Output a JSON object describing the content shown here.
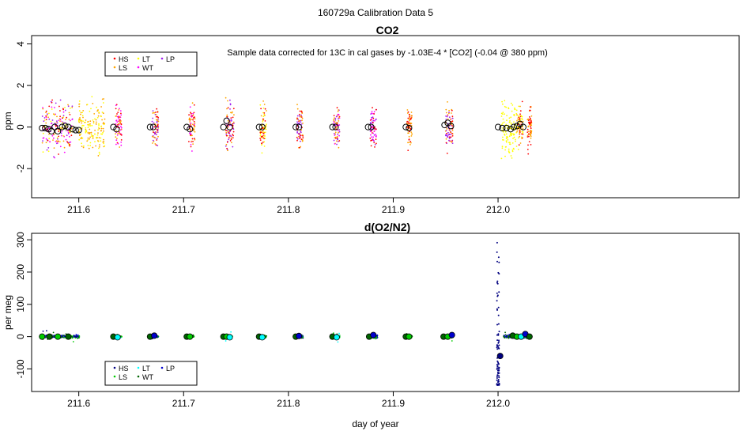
{
  "figure": {
    "title": "160729a   Calibration Data 5",
    "xlabel": "day of year",
    "x_ticks": [
      211.6,
      211.7,
      211.8,
      211.9,
      212.0
    ],
    "xlim": [
      211.555,
      212.23
    ]
  },
  "colors": {
    "HS": "#ff0000",
    "LS": "#ffa500",
    "LT": "#ffff00",
    "WT": "#ff00ff",
    "LP": "#a020f0",
    "o2_HS": "#000080",
    "o2_LS": "#00cc00",
    "o2_LT": "#00ffff",
    "o2_WT": "#006400",
    "o2_LP": "#0000cd"
  },
  "chart_data": [
    {
      "type": "scatter",
      "title": "CO2",
      "annotation": "Sample data corrected for 13C in cal gases by -1.03E-4 * [CO2] (-0.04 @ 380 ppm)",
      "ylabel": "ppm",
      "ylim": [
        -3.4,
        4.4
      ],
      "y_ticks": [
        -2,
        0,
        2,
        4
      ],
      "legend": {
        "position": "top-left",
        "entries": [
          "HS",
          "LS",
          "LT",
          "WT",
          "LP"
        ]
      },
      "clusters": [
        {
          "x": 211.565,
          "width": 0.03,
          "spread": 0.8,
          "series": [
            "HS",
            "LS",
            "LT",
            "WT",
            "LP"
          ]
        },
        {
          "x": 211.6,
          "width": 0.025,
          "spread": 0.9,
          "series": [
            "LT",
            "LS"
          ]
        },
        {
          "x": 211.635,
          "width": 0.006,
          "spread": 0.7,
          "series": [
            "HS",
            "LS",
            "WT"
          ]
        },
        {
          "x": 211.67,
          "width": 0.006,
          "spread": 0.7,
          "series": [
            "HS",
            "LS",
            "LP"
          ]
        },
        {
          "x": 211.705,
          "width": 0.006,
          "spread": 0.7,
          "series": [
            "LS",
            "HS",
            "WT"
          ]
        },
        {
          "x": 211.74,
          "width": 0.008,
          "spread": 0.8,
          "series": [
            "HS",
            "LS",
            "LP"
          ]
        },
        {
          "x": 211.773,
          "width": 0.006,
          "spread": 0.7,
          "series": [
            "HS",
            "LS",
            "LT"
          ]
        },
        {
          "x": 211.808,
          "width": 0.006,
          "spread": 0.7,
          "series": [
            "HS",
            "LS",
            "LP"
          ]
        },
        {
          "x": 211.843,
          "width": 0.006,
          "spread": 0.7,
          "series": [
            "LS",
            "HS",
            "WT",
            "LP"
          ]
        },
        {
          "x": 211.878,
          "width": 0.006,
          "spread": 0.7,
          "series": [
            "HS",
            "WT",
            "LP"
          ]
        },
        {
          "x": 211.913,
          "width": 0.005,
          "spread": 0.6,
          "series": [
            "LS",
            "HS"
          ]
        },
        {
          "x": 211.95,
          "width": 0.007,
          "spread": 0.7,
          "series": [
            "HS",
            "LS",
            "LP"
          ]
        },
        {
          "x": 212.003,
          "width": 0.015,
          "spread": 0.9,
          "series": [
            "LT"
          ]
        },
        {
          "x": 212.018,
          "width": 0.006,
          "spread": 0.7,
          "series": [
            "LT",
            "LS",
            "HS"
          ]
        },
        {
          "x": 212.028,
          "width": 0.004,
          "spread": 0.7,
          "series": [
            "HS",
            "LS"
          ]
        }
      ],
      "means": [
        {
          "x": 211.565,
          "y": -0.05
        },
        {
          "x": 211.568,
          "y": -0.05
        },
        {
          "x": 211.571,
          "y": -0.1
        },
        {
          "x": 211.574,
          "y": -0.2
        },
        {
          "x": 211.577,
          "y": 0.0
        },
        {
          "x": 211.58,
          "y": -0.2
        },
        {
          "x": 211.584,
          "y": 0.0
        },
        {
          "x": 211.587,
          "y": 0.05
        },
        {
          "x": 211.59,
          "y": 0.0
        },
        {
          "x": 211.594,
          "y": -0.1
        },
        {
          "x": 211.597,
          "y": -0.15
        },
        {
          "x": 211.6,
          "y": -0.15
        },
        {
          "x": 211.633,
          "y": 0.0
        },
        {
          "x": 211.636,
          "y": -0.1
        },
        {
          "x": 211.668,
          "y": 0.0
        },
        {
          "x": 211.671,
          "y": 0.0
        },
        {
          "x": 211.703,
          "y": 0.0
        },
        {
          "x": 211.706,
          "y": -0.1
        },
        {
          "x": 211.738,
          "y": 0.0
        },
        {
          "x": 211.741,
          "y": 0.3
        },
        {
          "x": 211.744,
          "y": 0.0
        },
        {
          "x": 211.772,
          "y": 0.0
        },
        {
          "x": 211.775,
          "y": 0.0
        },
        {
          "x": 211.807,
          "y": 0.0
        },
        {
          "x": 211.81,
          "y": 0.0
        },
        {
          "x": 211.842,
          "y": 0.0
        },
        {
          "x": 211.845,
          "y": 0.0
        },
        {
          "x": 211.876,
          "y": 0.0
        },
        {
          "x": 211.879,
          "y": 0.0
        },
        {
          "x": 211.912,
          "y": 0.0
        },
        {
          "x": 211.915,
          "y": -0.05
        },
        {
          "x": 211.949,
          "y": 0.1
        },
        {
          "x": 211.952,
          "y": 0.2
        },
        {
          "x": 211.955,
          "y": 0.05
        },
        {
          "x": 212.0,
          "y": 0.0
        },
        {
          "x": 212.004,
          "y": -0.05
        },
        {
          "x": 212.008,
          "y": -0.05
        },
        {
          "x": 212.012,
          "y": -0.1
        },
        {
          "x": 212.015,
          "y": 0.0
        },
        {
          "x": 212.018,
          "y": 0.05
        },
        {
          "x": 212.021,
          "y": 0.15
        },
        {
          "x": 212.024,
          "y": 0.0
        }
      ]
    },
    {
      "type": "scatter",
      "title": "d(O2/N2)",
      "ylabel": "per meg",
      "ylim": [
        -170,
        320
      ],
      "y_ticks": [
        -100,
        0,
        100,
        200,
        300
      ],
      "legend": {
        "position": "bottom-left",
        "entries": [
          "HS",
          "LS",
          "LT",
          "WT",
          "LP"
        ]
      },
      "clusters": [
        {
          "x": 211.565,
          "width": 0.036,
          "spread": 3,
          "series": [
            "HS",
            "LP",
            "LS",
            "WT"
          ]
        },
        {
          "x": 211.635,
          "width": 0.006,
          "spread": 2,
          "series": [
            "LS",
            "WT",
            "LT"
          ]
        },
        {
          "x": 211.67,
          "width": 0.006,
          "spread": 2,
          "series": [
            "LS",
            "WT",
            "LP"
          ]
        },
        {
          "x": 211.705,
          "width": 0.005,
          "spread": 2,
          "series": [
            "LS",
            "WT"
          ]
        },
        {
          "x": 211.74,
          "width": 0.007,
          "spread": 3,
          "series": [
            "LS",
            "WT",
            "LT"
          ]
        },
        {
          "x": 211.773,
          "width": 0.006,
          "spread": 3,
          "series": [
            "LS",
            "WT",
            "HS"
          ]
        },
        {
          "x": 211.808,
          "width": 0.006,
          "spread": 3,
          "series": [
            "LS",
            "WT",
            "LP",
            "HS"
          ]
        },
        {
          "x": 211.843,
          "width": 0.006,
          "spread": 3,
          "series": [
            "LS",
            "WT",
            "LT"
          ]
        },
        {
          "x": 211.878,
          "width": 0.007,
          "spread": 4,
          "series": [
            "LS",
            "WT",
            "LP"
          ]
        },
        {
          "x": 211.913,
          "width": 0.005,
          "spread": 3,
          "series": [
            "LS",
            "WT"
          ]
        },
        {
          "x": 211.95,
          "width": 0.007,
          "spread": 3,
          "series": [
            "LS",
            "WT",
            "LP"
          ]
        },
        {
          "x": 212.005,
          "width": 0.015,
          "spread": 3,
          "series": [
            "HS",
            "LP",
            "LS",
            "WT"
          ]
        },
        {
          "x": 212.022,
          "width": 0.006,
          "spread": 3,
          "series": [
            "LS",
            "WT",
            "LP"
          ]
        }
      ],
      "spike": {
        "x": 212.0,
        "y_min": -150,
        "y_max": 300,
        "series": "HS"
      },
      "means": [
        {
          "x": 211.565,
          "y": 0,
          "series": "LS"
        },
        {
          "x": 211.572,
          "y": 0,
          "series": "WT"
        },
        {
          "x": 211.58,
          "y": 0,
          "series": "LS"
        },
        {
          "x": 211.59,
          "y": 0,
          "series": "WT"
        },
        {
          "x": 211.633,
          "y": 0,
          "series": "WT"
        },
        {
          "x": 211.637,
          "y": -2,
          "series": "LT"
        },
        {
          "x": 211.668,
          "y": 0,
          "series": "WT"
        },
        {
          "x": 211.672,
          "y": 3,
          "series": "LP"
        },
        {
          "x": 211.703,
          "y": 0,
          "series": "WT"
        },
        {
          "x": 211.706,
          "y": 0,
          "series": "LS"
        },
        {
          "x": 211.738,
          "y": 0,
          "series": "WT"
        },
        {
          "x": 211.741,
          "y": 0,
          "series": "LS"
        },
        {
          "x": 211.744,
          "y": -2,
          "series": "LT"
        },
        {
          "x": 211.772,
          "y": 0,
          "series": "WT"
        },
        {
          "x": 211.775,
          "y": -2,
          "series": "LT"
        },
        {
          "x": 211.807,
          "y": 0,
          "series": "WT"
        },
        {
          "x": 211.81,
          "y": 2,
          "series": "LP"
        },
        {
          "x": 211.842,
          "y": 0,
          "series": "WT"
        },
        {
          "x": 211.846,
          "y": -2,
          "series": "LT"
        },
        {
          "x": 211.877,
          "y": 0,
          "series": "WT"
        },
        {
          "x": 211.881,
          "y": 5,
          "series": "LP"
        },
        {
          "x": 211.912,
          "y": 0,
          "series": "WT"
        },
        {
          "x": 211.915,
          "y": 0,
          "series": "LS"
        },
        {
          "x": 211.948,
          "y": 0,
          "series": "WT"
        },
        {
          "x": 211.952,
          "y": 0,
          "series": "LS"
        },
        {
          "x": 211.956,
          "y": 5,
          "series": "LP"
        },
        {
          "x": 212.002,
          "y": -60,
          "series": "HS"
        },
        {
          "x": 212.014,
          "y": 3,
          "series": "WT"
        },
        {
          "x": 212.018,
          "y": 0,
          "series": "LS"
        },
        {
          "x": 212.022,
          "y": 0,
          "series": "LT"
        },
        {
          "x": 212.026,
          "y": 8,
          "series": "LP"
        },
        {
          "x": 212.03,
          "y": 0,
          "series": "WT"
        }
      ]
    }
  ]
}
